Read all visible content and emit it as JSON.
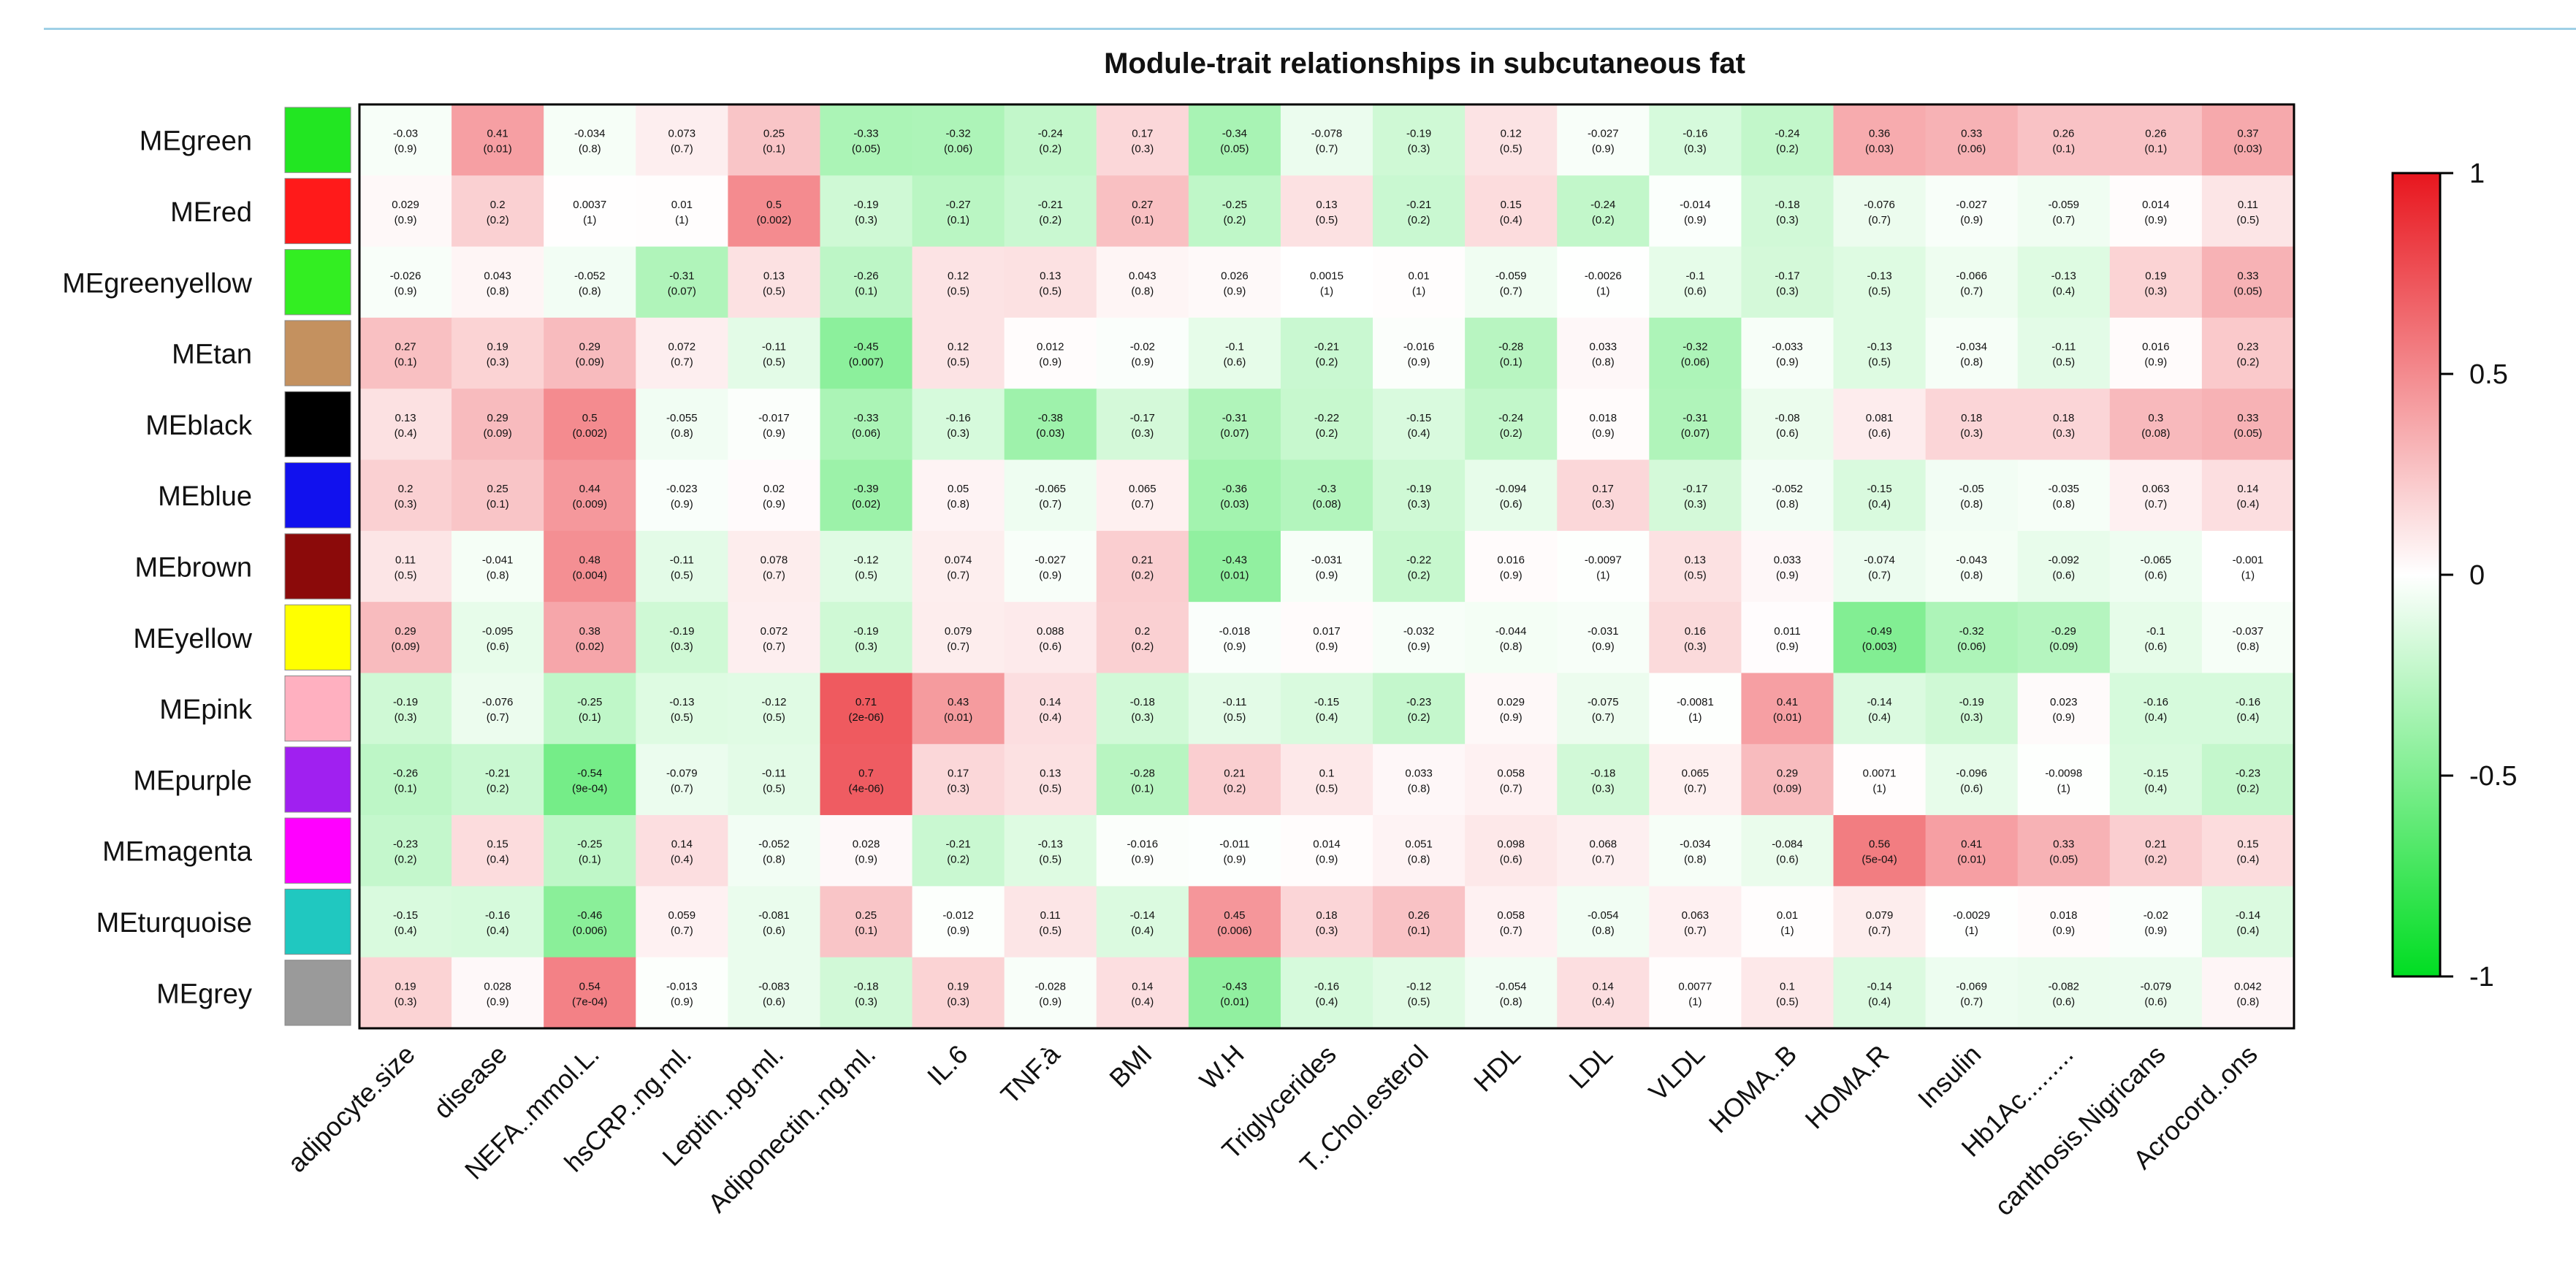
{
  "chart_data": {
    "type": "heatmap",
    "title": "Module-trait relationships in subcutaneous fat",
    "rows": [
      {
        "label": "MEgreen",
        "color": "#22e622"
      },
      {
        "label": "MEred",
        "color": "#ff1a1a"
      },
      {
        "label": "MEgreenyellow",
        "color": "#33ee22"
      },
      {
        "label": "MEtan",
        "color": "#c4915f"
      },
      {
        "label": "MEblack",
        "color": "#000000"
      },
      {
        "label": "MEblue",
        "color": "#1111ee"
      },
      {
        "label": "MEbrown",
        "color": "#8b0a0a"
      },
      {
        "label": "MEyellow",
        "color": "#ffff00"
      },
      {
        "label": "MEpink",
        "color": "#ffb0c0"
      },
      {
        "label": "MEpurple",
        "color": "#a020f0"
      },
      {
        "label": "MEmagenta",
        "color": "#ff00ff"
      },
      {
        "label": "MEturquoise",
        "color": "#20c8c0"
      },
      {
        "label": "MEgrey",
        "color": "#9a9a9a"
      }
    ],
    "columns": [
      "adipocyte.size",
      "disease",
      "NEFA..mmol.L.",
      "hsCRP..ng.ml.",
      "Leptin..pg.ml.",
      "Adiponectin..ng.ml.",
      "IL.6",
      "TNF.à",
      "BMI",
      "W.H",
      "Triglycerides",
      "T..Chol.esterol",
      "HDL",
      "LDL",
      "VLDL",
      "HOMA..B",
      "HOMA.R",
      "Insulin",
      "Hb1Ac.........",
      "canthosis.Nigricans",
      "Acrocord..ons"
    ],
    "values": [
      [
        "-0.03",
        "0.41",
        "-0.034",
        "0.073",
        "0.25",
        "-0.33",
        "-0.32",
        "-0.24",
        "0.17",
        "-0.34",
        "-0.078",
        "-0.19",
        "0.12",
        "-0.027",
        "-0.16",
        "-0.24",
        "0.36",
        "0.33",
        "0.26",
        "0.26",
        "0.37"
      ],
      [
        "0.029",
        "0.2",
        "0.0037",
        "0.01",
        "0.5",
        "-0.19",
        "-0.27",
        "-0.21",
        "0.27",
        "-0.25",
        "0.13",
        "-0.21",
        "0.15",
        "-0.24",
        "-0.014",
        "-0.18",
        "-0.076",
        "-0.027",
        "-0.059",
        "0.014",
        "0.11"
      ],
      [
        "-0.026",
        "0.043",
        "-0.052",
        "-0.31",
        "0.13",
        "-0.26",
        "0.12",
        "0.13",
        "0.043",
        "0.026",
        "0.0015",
        "0.01",
        "-0.059",
        "-0.0026",
        "-0.1",
        "-0.17",
        "-0.13",
        "-0.066",
        "-0.13",
        "0.19",
        "0.33"
      ],
      [
        "0.27",
        "0.19",
        "0.29",
        "0.072",
        "-0.11",
        "-0.45",
        "0.12",
        "0.012",
        "-0.02",
        "-0.1",
        "-0.21",
        "-0.016",
        "-0.28",
        "0.033",
        "-0.32",
        "-0.033",
        "-0.13",
        "-0.034",
        "-0.11",
        "0.016",
        "0.23"
      ],
      [
        "0.13",
        "0.29",
        "0.5",
        "-0.055",
        "-0.017",
        "-0.33",
        "-0.16",
        "-0.38",
        "-0.17",
        "-0.31",
        "-0.22",
        "-0.15",
        "-0.24",
        "0.018",
        "-0.31",
        "-0.08",
        "0.081",
        "0.18",
        "0.18",
        "0.3",
        "0.33"
      ],
      [
        "0.2",
        "0.25",
        "0.44",
        "-0.023",
        "0.02",
        "-0.39",
        "0.05",
        "-0.065",
        "0.065",
        "-0.36",
        "-0.3",
        "-0.19",
        "-0.094",
        "0.17",
        "-0.17",
        "-0.052",
        "-0.15",
        "-0.05",
        "-0.035",
        "0.063",
        "0.14"
      ],
      [
        "0.11",
        "-0.041",
        "0.48",
        "-0.11",
        "0.078",
        "-0.12",
        "0.074",
        "-0.027",
        "0.21",
        "-0.43",
        "-0.031",
        "-0.22",
        "0.016",
        "-0.0097",
        "0.13",
        "0.033",
        "-0.074",
        "-0.043",
        "-0.092",
        "-0.065",
        "-0.001"
      ],
      [
        "0.29",
        "-0.095",
        "0.38",
        "-0.19",
        "0.072",
        "-0.19",
        "0.079",
        "0.088",
        "0.2",
        "-0.018",
        "0.017",
        "-0.032",
        "-0.044",
        "-0.031",
        "0.16",
        "0.011",
        "-0.49",
        "-0.32",
        "-0.29",
        "-0.1",
        "-0.037"
      ],
      [
        "-0.19",
        "-0.076",
        "-0.25",
        "-0.13",
        "-0.12",
        "0.71",
        "0.43",
        "0.14",
        "-0.18",
        "-0.11",
        "-0.15",
        "-0.23",
        "0.029",
        "-0.075",
        "-0.0081",
        "0.41",
        "-0.14",
        "-0.19",
        "0.023",
        "-0.16",
        "-0.16"
      ],
      [
        "-0.26",
        "-0.21",
        "-0.54",
        "-0.079",
        "-0.11",
        "0.7",
        "0.17",
        "0.13",
        "-0.28",
        "0.21",
        "0.1",
        "0.033",
        "0.058",
        "-0.18",
        "0.065",
        "0.29",
        "0.0071",
        "-0.096",
        "-0.0098",
        "-0.15",
        "-0.23"
      ],
      [
        "-0.23",
        "0.15",
        "-0.25",
        "0.14",
        "-0.052",
        "0.028",
        "-0.21",
        "-0.13",
        "-0.016",
        "-0.011",
        "0.014",
        "0.051",
        "0.098",
        "0.068",
        "-0.034",
        "-0.084",
        "0.56",
        "0.41",
        "0.33",
        "0.21",
        "0.15"
      ],
      [
        "-0.15",
        "-0.16",
        "-0.46",
        "0.059",
        "-0.081",
        "0.25",
        "-0.012",
        "0.11",
        "-0.14",
        "0.45",
        "0.18",
        "0.26",
        "0.058",
        "-0.054",
        "0.063",
        "0.01",
        "0.079",
        "-0.0029",
        "0.018",
        "-0.02",
        "-0.14"
      ],
      [
        "0.19",
        "0.028",
        "0.54",
        "-0.013",
        "-0.083",
        "-0.18",
        "0.19",
        "-0.028",
        "0.14",
        "-0.43",
        "-0.16",
        "-0.12",
        "-0.054",
        "0.14",
        "0.0077",
        "0.1",
        "-0.14",
        "-0.069",
        "-0.082",
        "-0.079",
        "0.042"
      ]
    ],
    "pvalues": [
      [
        "(0.9)",
        "(0.01)",
        "(0.8)",
        "(0.7)",
        "(0.1)",
        "(0.05)",
        "(0.06)",
        "(0.2)",
        "(0.3)",
        "(0.05)",
        "(0.7)",
        "(0.3)",
        "(0.5)",
        "(0.9)",
        "(0.3)",
        "(0.2)",
        "(0.03)",
        "(0.06)",
        "(0.1)",
        "(0.1)",
        "(0.03)"
      ],
      [
        "(0.9)",
        "(0.2)",
        "(1)",
        "(1)",
        "(0.002)",
        "(0.3)",
        "(0.1)",
        "(0.2)",
        "(0.1)",
        "(0.2)",
        "(0.5)",
        "(0.2)",
        "(0.4)",
        "(0.2)",
        "(0.9)",
        "(0.3)",
        "(0.7)",
        "(0.9)",
        "(0.7)",
        "(0.9)",
        "(0.5)"
      ],
      [
        "(0.9)",
        "(0.8)",
        "(0.8)",
        "(0.07)",
        "(0.5)",
        "(0.1)",
        "(0.5)",
        "(0.5)",
        "(0.8)",
        "(0.9)",
        "(1)",
        "(1)",
        "(0.7)",
        "(1)",
        "(0.6)",
        "(0.3)",
        "(0.5)",
        "(0.7)",
        "(0.4)",
        "(0.3)",
        "(0.05)"
      ],
      [
        "(0.1)",
        "(0.3)",
        "(0.09)",
        "(0.7)",
        "(0.5)",
        "(0.007)",
        "(0.5)",
        "(0.9)",
        "(0.9)",
        "(0.6)",
        "(0.2)",
        "(0.9)",
        "(0.1)",
        "(0.8)",
        "(0.06)",
        "(0.9)",
        "(0.5)",
        "(0.8)",
        "(0.5)",
        "(0.9)",
        "(0.2)"
      ],
      [
        "(0.4)",
        "(0.09)",
        "(0.002)",
        "(0.8)",
        "(0.9)",
        "(0.06)",
        "(0.3)",
        "(0.03)",
        "(0.3)",
        "(0.07)",
        "(0.2)",
        "(0.4)",
        "(0.2)",
        "(0.9)",
        "(0.07)",
        "(0.6)",
        "(0.6)",
        "(0.3)",
        "(0.3)",
        "(0.08)",
        "(0.05)"
      ],
      [
        "(0.3)",
        "(0.1)",
        "(0.009)",
        "(0.9)",
        "(0.9)",
        "(0.02)",
        "(0.8)",
        "(0.7)",
        "(0.7)",
        "(0.03)",
        "(0.08)",
        "(0.3)",
        "(0.6)",
        "(0.3)",
        "(0.3)",
        "(0.8)",
        "(0.4)",
        "(0.8)",
        "(0.8)",
        "(0.7)",
        "(0.4)"
      ],
      [
        "(0.5)",
        "(0.8)",
        "(0.004)",
        "(0.5)",
        "(0.7)",
        "(0.5)",
        "(0.7)",
        "(0.9)",
        "(0.2)",
        "(0.01)",
        "(0.9)",
        "(0.2)",
        "(0.9)",
        "(1)",
        "(0.5)",
        "(0.9)",
        "(0.7)",
        "(0.8)",
        "(0.6)",
        "(0.6)",
        "(1)"
      ],
      [
        "(0.09)",
        "(0.6)",
        "(0.02)",
        "(0.3)",
        "(0.7)",
        "(0.3)",
        "(0.7)",
        "(0.6)",
        "(0.2)",
        "(0.9)",
        "(0.9)",
        "(0.9)",
        "(0.8)",
        "(0.9)",
        "(0.3)",
        "(0.9)",
        "(0.003)",
        "(0.06)",
        "(0.09)",
        "(0.6)",
        "(0.8)"
      ],
      [
        "(0.3)",
        "(0.7)",
        "(0.1)",
        "(0.5)",
        "(0.5)",
        "(2e-06)",
        "(0.01)",
        "(0.4)",
        "(0.3)",
        "(0.5)",
        "(0.4)",
        "(0.2)",
        "(0.9)",
        "(0.7)",
        "(1)",
        "(0.01)",
        "(0.4)",
        "(0.3)",
        "(0.9)",
        "(0.4)",
        "(0.4)"
      ],
      [
        "(0.1)",
        "(0.2)",
        "(9e-04)",
        "(0.7)",
        "(0.5)",
        "(4e-06)",
        "(0.3)",
        "(0.5)",
        "(0.1)",
        "(0.2)",
        "(0.5)",
        "(0.8)",
        "(0.7)",
        "(0.3)",
        "(0.7)",
        "(0.09)",
        "(1)",
        "(0.6)",
        "(1)",
        "(0.4)",
        "(0.2)"
      ],
      [
        "(0.2)",
        "(0.4)",
        "(0.1)",
        "(0.4)",
        "(0.8)",
        "(0.9)",
        "(0.2)",
        "(0.5)",
        "(0.9)",
        "(0.9)",
        "(0.9)",
        "(0.8)",
        "(0.6)",
        "(0.7)",
        "(0.8)",
        "(0.6)",
        "(5e-04)",
        "(0.01)",
        "(0.05)",
        "(0.2)",
        "(0.4)"
      ],
      [
        "(0.4)",
        "(0.4)",
        "(0.006)",
        "(0.7)",
        "(0.6)",
        "(0.1)",
        "(0.9)",
        "(0.5)",
        "(0.4)",
        "(0.006)",
        "(0.3)",
        "(0.1)",
        "(0.7)",
        "(0.8)",
        "(0.7)",
        "(1)",
        "(0.7)",
        "(1)",
        "(0.9)",
        "(0.9)",
        "(0.4)"
      ],
      [
        "(0.3)",
        "(0.9)",
        "(7e-04)",
        "(0.9)",
        "(0.6)",
        "(0.3)",
        "(0.3)",
        "(0.9)",
        "(0.4)",
        "(0.01)",
        "(0.4)",
        "(0.5)",
        "(0.8)",
        "(0.4)",
        "(1)",
        "(0.5)",
        "(0.4)",
        "(0.7)",
        "(0.6)",
        "(0.6)",
        "(0.8)"
      ]
    ],
    "color_scale": {
      "min": -1,
      "max": 1,
      "low_color": "#00dd22",
      "mid_color": "#ffffff",
      "high_color": "#e8161e"
    },
    "legend_ticks": [
      "1",
      "0.5",
      "0",
      "-0.5",
      "-1"
    ],
    "legend_placement": "right"
  }
}
